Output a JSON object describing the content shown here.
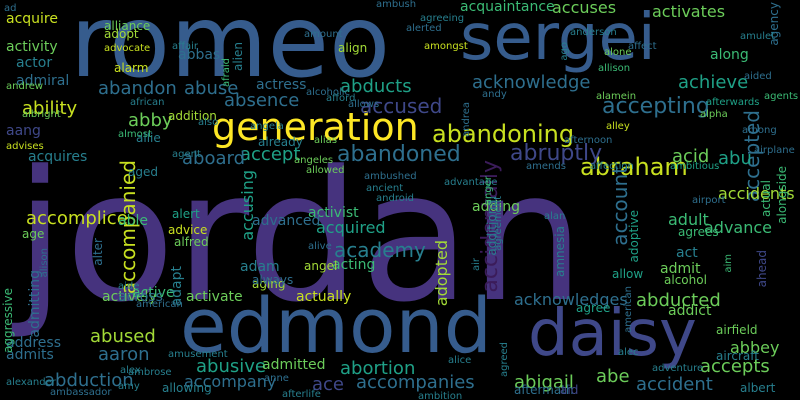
{
  "palette": {
    "background": "#000000",
    "dark_purple": "#3b1c5a",
    "purple": "#46337e",
    "indigo": "#3f4889",
    "blue": "#365c8d",
    "steel_blue": "#2e6f8e",
    "teal": "#277f8e",
    "sea_green": "#21918c",
    "green_teal": "#1fa187",
    "green": "#3bbb75",
    "light_green": "#6ccd5a",
    "lime": "#a2da37",
    "yellow_green": "#c8e020",
    "yellow": "#fde725"
  },
  "words": [
    "jordan",
    "romeo",
    "sergei",
    "edmond",
    "daisy",
    "generation",
    "abraham",
    "abandoning",
    "abandoned",
    "abruptly",
    "accepting",
    "accompanied",
    "accidentally",
    "accomplice",
    "account",
    "accepted",
    "accused",
    "abducts",
    "acknowledge",
    "achieve",
    "abuse",
    "absence",
    "ability",
    "abby",
    "abandon",
    "accept",
    "aboard",
    "acid",
    "abu",
    "accuses",
    "activates",
    "acquaintance",
    "accusing",
    "academy",
    "acquired",
    "adopted",
    "adding",
    "adult",
    "advance",
    "abbey",
    "accidents",
    "abducted",
    "acknowledges",
    "accompanies",
    "ace",
    "abortion",
    "abusive",
    "abused",
    "aaron",
    "abduction",
    "abigail",
    "abe",
    "accident",
    "accepts",
    "accompany",
    "admitted",
    "activity",
    "acquire",
    "actor",
    "admiral",
    "activist",
    "acting",
    "activate",
    "actively",
    "actually",
    "adam",
    "admitting",
    "admits",
    "address",
    "active",
    "across",
    "aang",
    "actress",
    "acquires",
    "advanced",
    "able",
    "act",
    "admit",
    "addict",
    "abbas",
    "adapt",
    "agency",
    "aggressive",
    "alongside",
    "alcohol",
    "airfield",
    "aircraft",
    "albert",
    "aged",
    "age",
    "alert",
    "alfred",
    "advice",
    "ad",
    "alliance",
    "adopt",
    "alarm",
    "afraid",
    "alien",
    "align",
    "affect",
    "amulet",
    "along",
    "allison",
    "aided",
    "agents",
    "almost",
    "allie",
    "addition",
    "agent",
    "already",
    "alias",
    "allowed",
    "alamein",
    "andrea",
    "alpha",
    "alley",
    "afterwards",
    "afternoon",
    "amends",
    "ambitious",
    "allowing",
    "afterlife",
    "ambition",
    "ambassador",
    "alexander",
    "alex",
    "amusement",
    "ambrose",
    "alice",
    "agreed",
    "aftermath",
    "aid",
    "adventure",
    "alec",
    "agree",
    "agrees",
    "airport",
    "allow",
    "aim",
    "ahead",
    "actual",
    "adoptive",
    "additional",
    "advantage",
    "aging",
    "always",
    "alive",
    "angel",
    "aide",
    "american",
    "alter",
    "alison",
    "albright",
    "advises",
    "andrew",
    "african",
    "alcoholic",
    "afford",
    "allows",
    "alerted",
    "amongst",
    "ambush",
    "andy",
    "anderson",
    "advocate",
    "alone",
    "ago",
    "airplane",
    "among",
    "angeles",
    "ambushed",
    "ancient",
    "android",
    "also",
    "affair",
    "angela",
    "anger",
    "agreement",
    "affection",
    "amount",
    "alan",
    "amnesia",
    "air",
    "agreeing",
    "amy",
    "american",
    "anne",
    "alertly"
  ]
}
